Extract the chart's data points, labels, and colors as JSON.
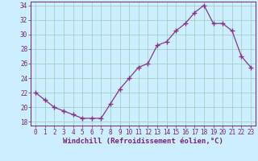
{
  "x": [
    0,
    1,
    2,
    3,
    4,
    5,
    6,
    7,
    8,
    9,
    10,
    11,
    12,
    13,
    14,
    15,
    16,
    17,
    18,
    19,
    20,
    21,
    22,
    23
  ],
  "y": [
    22,
    21,
    20,
    19.5,
    19,
    18.5,
    18.5,
    18.5,
    20.5,
    22.5,
    24,
    25.5,
    26,
    28.5,
    29,
    30.5,
    31.5,
    33,
    34,
    31.5,
    31.5,
    30.5,
    27,
    25.5
  ],
  "line_color": "#883388",
  "marker": "+",
  "marker_size": 4,
  "bg_color": "#bbeebb",
  "plot_bg_color": "#cceeff",
  "grid_color": "#99ccbb",
  "xlabel": "Windchill (Refroidissement éolien,°C)",
  "xlim": [
    -0.5,
    23.5
  ],
  "ylim": [
    17.5,
    34.5
  ],
  "yticks": [
    18,
    20,
    22,
    24,
    26,
    28,
    30,
    32,
    34
  ],
  "xticks": [
    0,
    1,
    2,
    3,
    4,
    5,
    6,
    7,
    8,
    9,
    10,
    11,
    12,
    13,
    14,
    15,
    16,
    17,
    18,
    19,
    20,
    21,
    22,
    23
  ],
  "tick_color": "#772277",
  "label_color": "#772277",
  "tick_fontsize": 5.5,
  "xlabel_fontsize": 6.5
}
